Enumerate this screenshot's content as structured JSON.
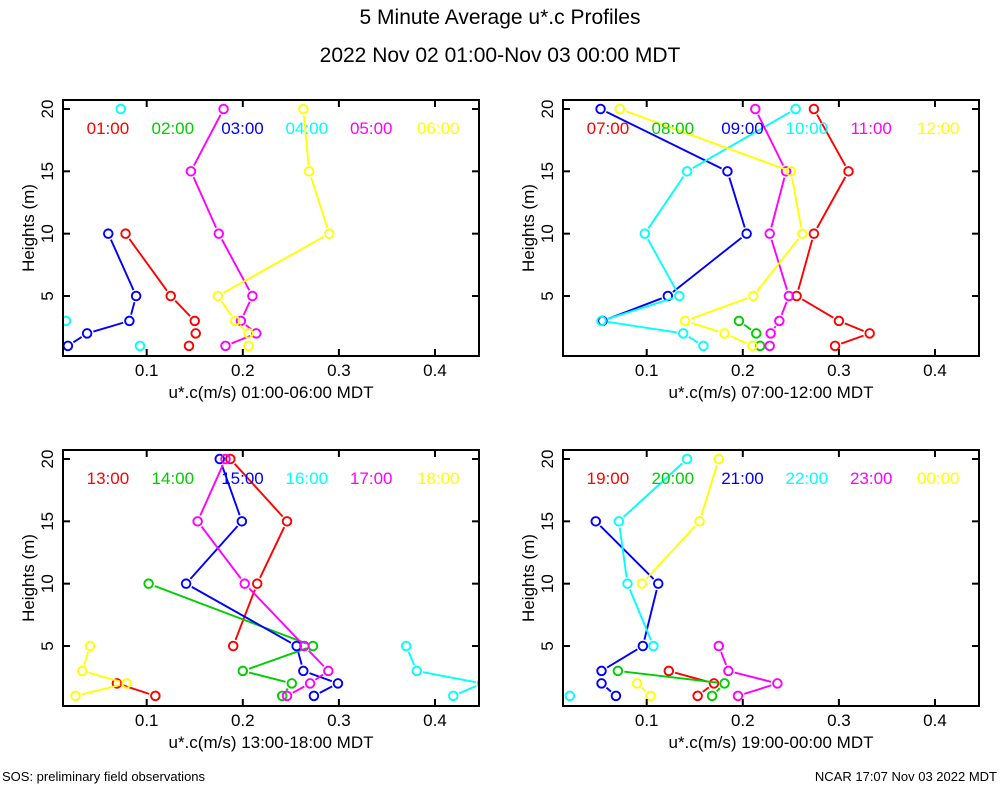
{
  "page": {
    "title": "5 Minute Average u*.c Profiles",
    "subtitle": "2022 Nov 02 01:00-Nov 03 00:00 MDT",
    "footer_left": "SOS: preliminary field observations",
    "footer_right": "NCAR 17:07 Nov 03 2022 MDT"
  },
  "palette": {
    "red": "#FF0000",
    "green": "#00CD00",
    "blue": "#0000FF",
    "cyan": "#00FFFF",
    "magenta": "#FF00FF",
    "yellow": "#FFFF00"
  },
  "axes": {
    "xticks": [
      0.1,
      0.2,
      0.3,
      0.4
    ],
    "yticks": [
      5,
      10,
      15,
      20
    ],
    "xlim": [
      0.013,
      0.446
    ],
    "ylim": [
      0.2,
      20.7
    ],
    "ylabel": "Heights (m)",
    "profile_heights_m": [
      1,
      2,
      3,
      5,
      10,
      15,
      20
    ],
    "grid": false,
    "tick_direction": "in",
    "marker": "open-circle"
  },
  "chart_data": [
    {
      "type": "line",
      "xlabel": "u*.c(m/s) 01:00-06:00 MDT",
      "legend_position": "top-inside",
      "series": [
        {
          "name": "01:00",
          "color": "#FF0000",
          "runs": [
            [
              [
                0.078,
                10
              ],
              [
                0.125,
                5
              ],
              [
                0.15,
                3
              ],
              [
                0.151,
                2
              ],
              [
                0.144,
                1
              ]
            ]
          ]
        },
        {
          "name": "02:00",
          "color": "#00CD00",
          "runs": []
        },
        {
          "name": "03:00",
          "color": "#0000FF",
          "runs": [
            [
              [
                0.06,
                10
              ],
              [
                0.089,
                5
              ],
              [
                0.082,
                3
              ],
              [
                0.038,
                2
              ],
              [
                0.018,
                1
              ]
            ]
          ]
        },
        {
          "name": "04:00",
          "color": "#00FFFF",
          "runs": [
            [
              [
                0.073,
                20
              ]
            ],
            [
              [
                0.016,
                3
              ]
            ],
            [
              [
                0.093,
                1
              ]
            ]
          ]
        },
        {
          "name": "05:00",
          "color": "#FF00FF",
          "runs": [
            [
              [
                0.18,
                20
              ],
              [
                0.146,
                15
              ],
              [
                0.175,
                10
              ],
              [
                0.21,
                5
              ],
              [
                0.198,
                3
              ],
              [
                0.214,
                2
              ],
              [
                0.182,
                1
              ]
            ]
          ]
        },
        {
          "name": "06:00",
          "color": "#FFFF00",
          "runs": [
            [
              [
                0.263,
                20
              ],
              [
                0.269,
                15
              ],
              [
                0.29,
                10
              ],
              [
                0.174,
                5
              ],
              [
                0.192,
                3
              ],
              [
                0.206,
                2
              ],
              [
                0.206,
                1
              ]
            ]
          ]
        }
      ]
    },
    {
      "type": "line",
      "xlabel": "u*.c(m/s) 07:00-12:00 MDT",
      "legend_position": "top-inside",
      "series": [
        {
          "name": "07:00",
          "color": "#FF0000",
          "runs": [
            [
              [
                0.274,
                20
              ],
              [
                0.31,
                15
              ],
              [
                0.274,
                10
              ],
              [
                0.256,
                5
              ],
              [
                0.3,
                3
              ],
              [
                0.332,
                2
              ],
              [
                0.296,
                1
              ]
            ]
          ]
        },
        {
          "name": "08:00",
          "color": "#00CD00",
          "runs": [
            [
              [
                0.196,
                3
              ],
              [
                0.214,
                2
              ],
              [
                0.218,
                1
              ]
            ]
          ]
        },
        {
          "name": "09:00",
          "color": "#0000FF",
          "runs": [
            [
              [
                0.052,
                20
              ],
              [
                0.184,
                15
              ],
              [
                0.204,
                10
              ],
              [
                0.122,
                5
              ],
              [
                0.054,
                3
              ]
            ]
          ]
        },
        {
          "name": "10:00",
          "color": "#00FFFF",
          "runs": [
            [
              [
                0.255,
                20
              ],
              [
                0.142,
                15
              ],
              [
                0.098,
                10
              ],
              [
                0.134,
                5
              ],
              [
                0.053,
                3
              ],
              [
                0.138,
                2
              ],
              [
                0.159,
                1
              ]
            ]
          ]
        },
        {
          "name": "11:00",
          "color": "#FF00FF",
          "runs": [
            [
              [
                0.213,
                20
              ],
              [
                0.245,
                15
              ],
              [
                0.228,
                10
              ],
              [
                0.248,
                5
              ],
              [
                0.238,
                3
              ],
              [
                0.229,
                2
              ],
              [
                0.228,
                1
              ]
            ]
          ]
        },
        {
          "name": "12:00",
          "color": "#FFFF00",
          "runs": [
            [
              [
                0.072,
                20
              ],
              [
                0.25,
                15
              ],
              [
                0.262,
                10
              ],
              [
                0.211,
                5
              ],
              [
                0.14,
                3
              ],
              [
                0.181,
                2
              ],
              [
                0.21,
                1
              ]
            ]
          ]
        }
      ]
    },
    {
      "type": "line",
      "xlabel": "u*.c(m/s) 13:00-18:00 MDT",
      "legend_position": "top-inside",
      "series": [
        {
          "name": "13:00",
          "color": "#FF0000",
          "runs": [
            [
              [
                0.187,
                20
              ],
              [
                0.246,
                15
              ],
              [
                0.215,
                10
              ],
              [
                0.19,
                5
              ]
            ],
            [
              [
                0.069,
                2
              ],
              [
                0.109,
                1
              ]
            ]
          ]
        },
        {
          "name": "14:00",
          "color": "#00CD00",
          "runs": [
            [
              [
                0.102,
                10
              ],
              [
                0.273,
                5
              ],
              [
                0.2,
                3
              ],
              [
                0.251,
                2
              ],
              [
                0.241,
                1
              ]
            ]
          ]
        },
        {
          "name": "15:00",
          "color": "#0000FF",
          "runs": [
            [
              [
                0.176,
                20
              ],
              [
                0.199,
                15
              ],
              [
                0.141,
                10
              ],
              [
                0.256,
                5
              ],
              [
                0.263,
                3
              ],
              [
                0.299,
                2
              ],
              [
                0.274,
                1
              ]
            ]
          ]
        },
        {
          "name": "16:00",
          "color": "#00FFFF",
          "runs": [
            [
              [
                0.37,
                5
              ],
              [
                0.381,
                3
              ],
              [
                0.449,
                2
              ],
              [
                0.419,
                1
              ]
            ]
          ]
        },
        {
          "name": "17:00",
          "color": "#FF00FF",
          "runs": [
            [
              [
                0.182,
                20
              ],
              [
                0.153,
                15
              ],
              [
                0.202,
                10
              ],
              [
                0.264,
                5
              ],
              [
                0.289,
                3
              ],
              [
                0.27,
                2
              ],
              [
                0.246,
                1
              ]
            ]
          ]
        },
        {
          "name": "18:00",
          "color": "#FFFF00",
          "runs": [
            [
              [
                0.041,
                5
              ],
              [
                0.033,
                3
              ],
              [
                0.079,
                2
              ],
              [
                0.026,
                1
              ]
            ]
          ]
        }
      ]
    },
    {
      "type": "line",
      "xlabel": "u*.c(m/s) 19:00-00:00 MDT",
      "legend_position": "top-inside",
      "series": [
        {
          "name": "19:00",
          "color": "#FF0000",
          "runs": [
            [
              [
                0.123,
                3
              ],
              [
                0.17,
                2
              ],
              [
                0.153,
                1
              ]
            ]
          ]
        },
        {
          "name": "20:00",
          "color": "#00CD00",
          "runs": [
            [
              [
                0.07,
                3
              ],
              [
                0.181,
                2
              ],
              [
                0.168,
                1
              ]
            ]
          ]
        },
        {
          "name": "21:00",
          "color": "#0000FF",
          "runs": [
            [
              [
                0.047,
                15
              ],
              [
                0.112,
                10
              ],
              [
                0.096,
                5
              ],
              [
                0.053,
                3
              ],
              [
                0.053,
                2
              ],
              [
                0.068,
                1
              ]
            ]
          ]
        },
        {
          "name": "22:00",
          "color": "#00FFFF",
          "runs": [
            [
              [
                0.142,
                20
              ],
              [
                0.071,
                15
              ],
              [
                0.08,
                10
              ],
              [
                0.107,
                5
              ]
            ],
            [
              [
                0.02,
                1
              ]
            ]
          ]
        },
        {
          "name": "23:00",
          "color": "#FF00FF",
          "runs": [
            [
              [
                0.175,
                5
              ],
              [
                0.185,
                3
              ],
              [
                0.236,
                2
              ],
              [
                0.195,
                1
              ]
            ]
          ]
        },
        {
          "name": "00:00",
          "color": "#FFFF00",
          "runs": [
            [
              [
                0.175,
                20
              ],
              [
                0.155,
                15
              ],
              [
                0.095,
                10
              ]
            ],
            [
              [
                0.09,
                2
              ],
              [
                0.104,
                1
              ]
            ]
          ]
        }
      ]
    }
  ]
}
